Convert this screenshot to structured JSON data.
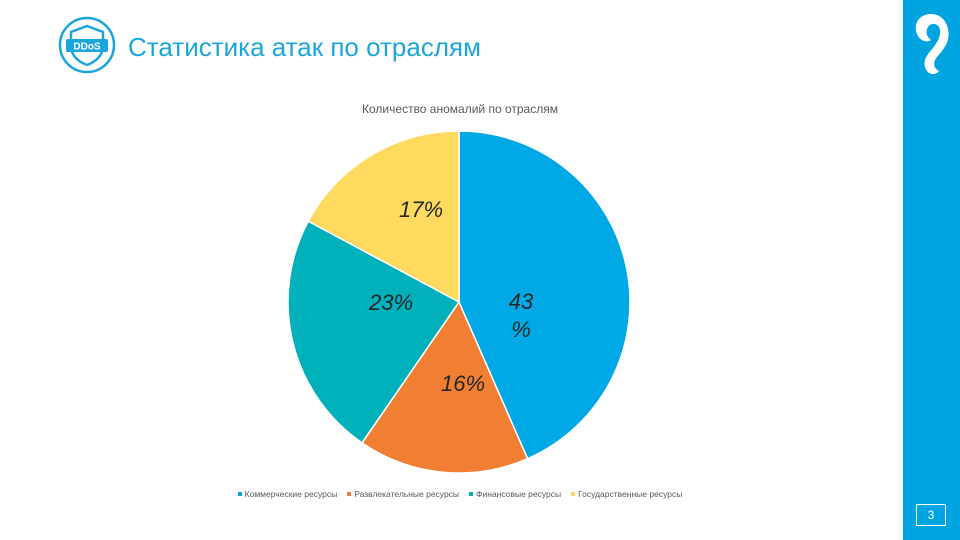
{
  "slide": {
    "title": "Статистика атак по отраслям",
    "badge_text": "DDoS",
    "page_number": "3"
  },
  "colors": {
    "brand_blue": "#00A4E0",
    "title_text": "#1AA6DC",
    "slice_outline": "#ffffff"
  },
  "icons": {
    "badge": "ddos-shield-icon",
    "logo": "rostelecom-logo-icon"
  },
  "chart_data": {
    "type": "pie",
    "title": "Количество аномалий по отраслям",
    "legend_position": "bottom",
    "categories": [
      "Коммерческие ресурсы",
      "Развлекательные ресурсы",
      "Финансовые ресурсы",
      "Государственные ресурсы"
    ],
    "values": [
      43,
      16,
      23,
      17
    ],
    "data_labels": [
      "43\n%",
      "16%",
      "23%",
      "17%"
    ],
    "colors": [
      "#00A8E6",
      "#F07F33",
      "#00B1BB",
      "#FFDA5F"
    ]
  }
}
